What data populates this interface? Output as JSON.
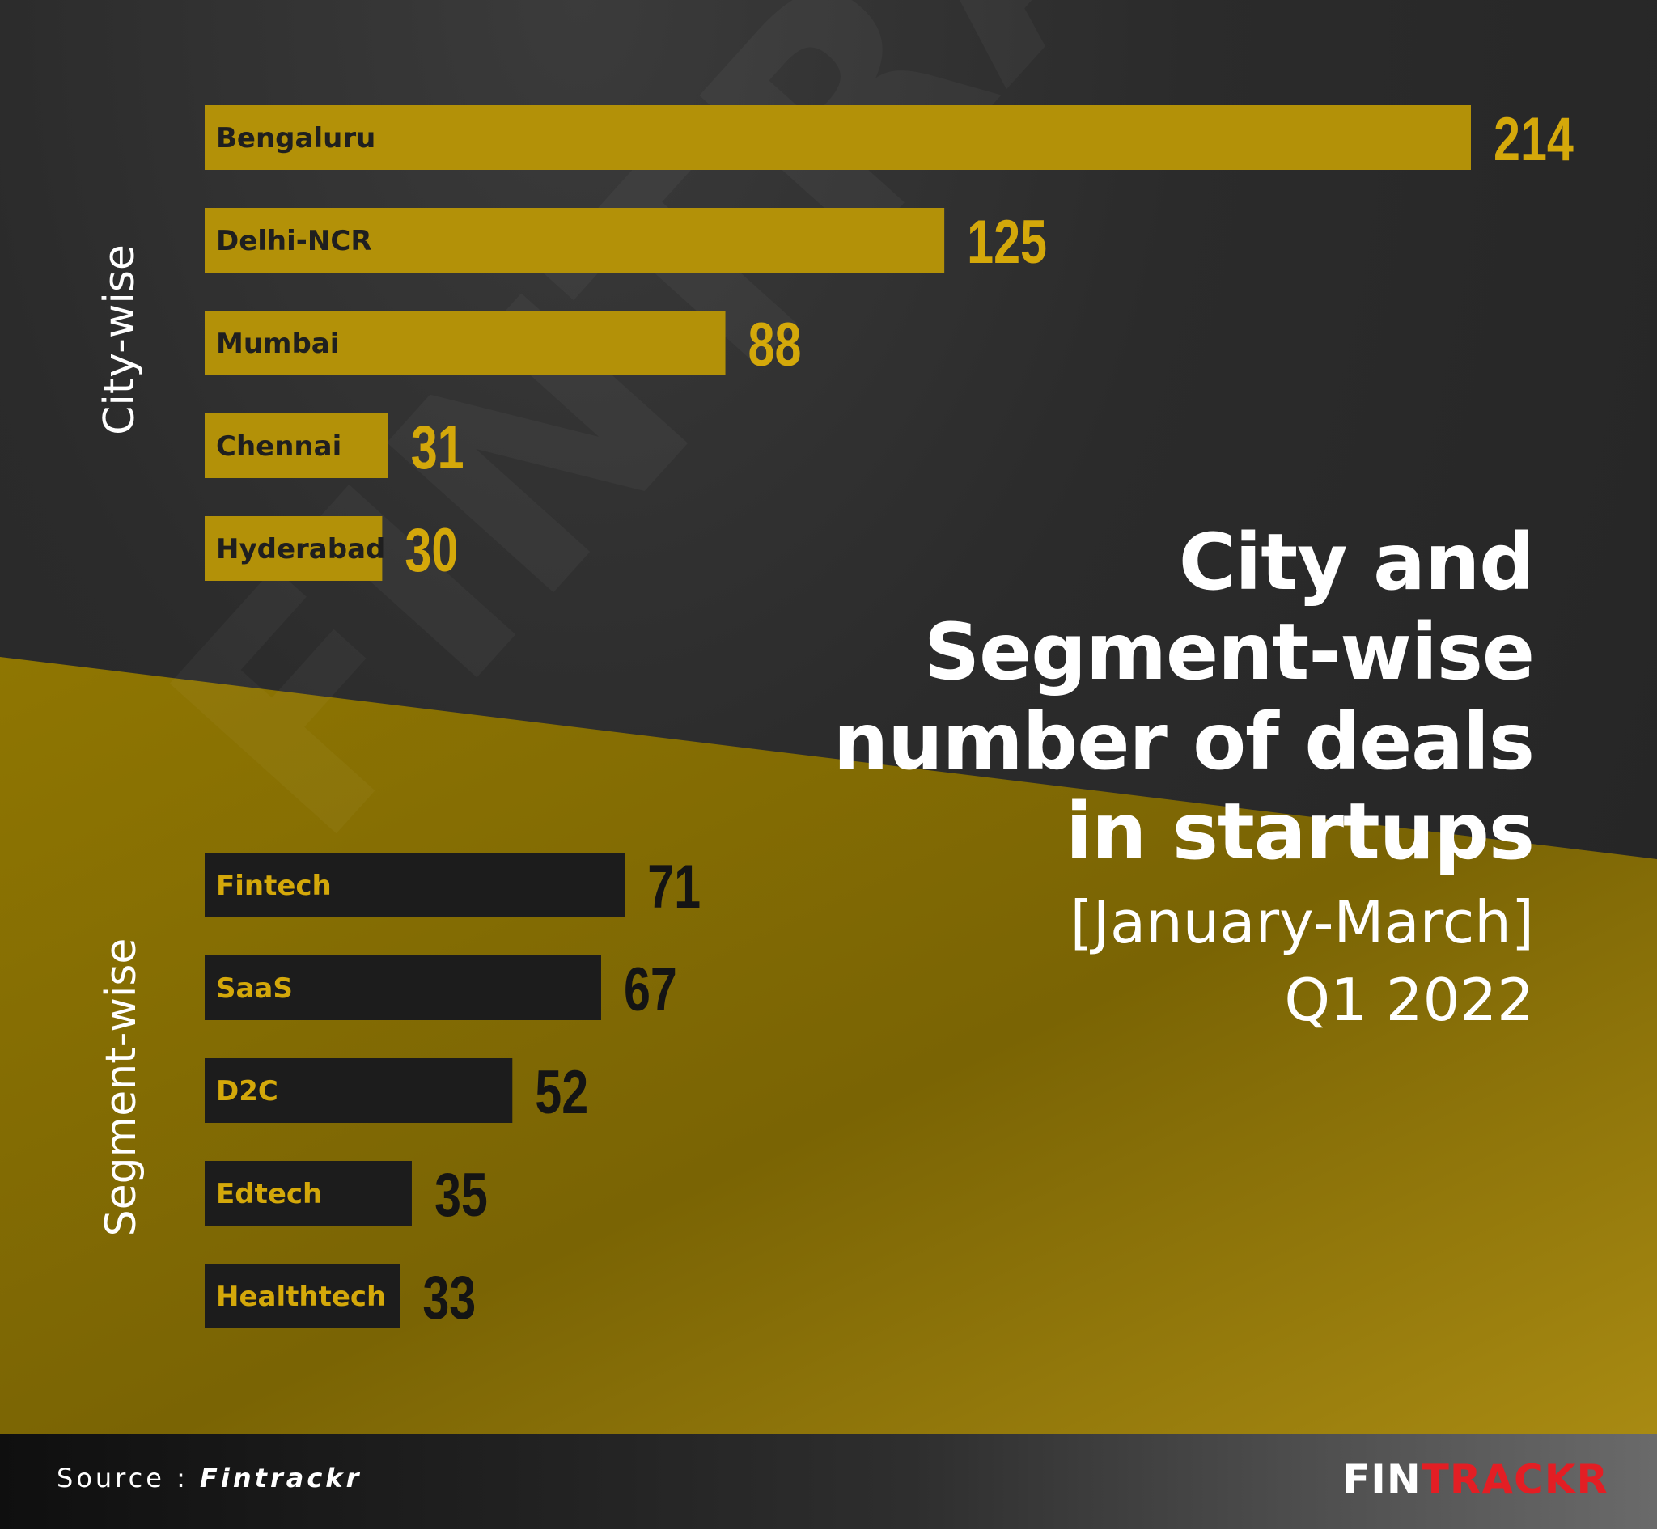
{
  "colors": {
    "gold_bar": "#b39108",
    "gold_value": "#d4a80a",
    "dark_bar": "#1c1c1c",
    "dark_value": "#141414",
    "gold_bg": "#8c7402",
    "dark_bg": "#262626",
    "white": "#ffffff",
    "brand_red": "#e31e24"
  },
  "title_lines": [
    "City and",
    "Segment-wise",
    "number of deals",
    "in startups"
  ],
  "period_lines": [
    "[January-March]",
    "Q1 2022"
  ],
  "section_labels": {
    "city": "City-wise",
    "segment": "Segment-wise"
  },
  "footer": {
    "source_prefix": "Source : ",
    "source_name": "Fintrackr"
  },
  "logo": {
    "white_part": "FIN",
    "red_part": "TRACKR"
  },
  "watermark": "FINTRACKR",
  "chart_data": [
    {
      "type": "bar",
      "orientation": "horizontal",
      "ylabel": "City-wise",
      "categories": [
        "Bengaluru",
        "Delhi-NCR",
        "Mumbai",
        "Chennai",
        "Hyderabad"
      ],
      "values": [
        214,
        125,
        88,
        31,
        30
      ]
    },
    {
      "type": "bar",
      "orientation": "horizontal",
      "ylabel": "Segment-wise",
      "categories": [
        "Fintech",
        "SaaS",
        "D2C",
        "Edtech",
        "Healthtech"
      ],
      "values": [
        71,
        67,
        52,
        35,
        33
      ]
    }
  ]
}
